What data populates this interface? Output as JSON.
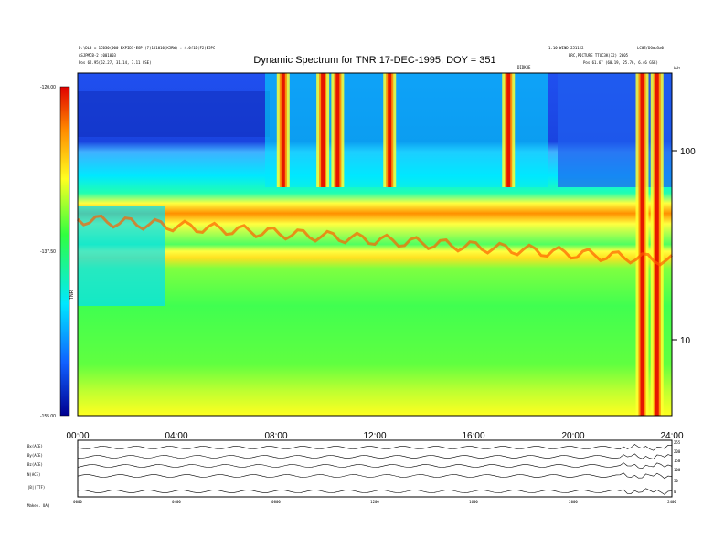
{
  "header": {
    "title": "Dynamic Spectrum for TNR 17-DEC-1995, DOY = 351",
    "left_line1": "D:\\DL3 = 1C030(000 EXPID1-EGP (7)1D1010(K5RW) : 4.0f1D(F2)E5PC",
    "left_line2": "ASJPMCB-2 :001003",
    "left_line3": "Pos  62.95(62.27, 31.14, 7.11 GSE)",
    "right_line1": "1.10 WIND 251122",
    "right_line2": "BRC,PICTURE TTUC3K(32) 2005",
    "right_line3": "Pos  61.67 (60.19, 25.76, 6.46 GSE)",
    "right_corner": "LC0E/DOmo3a0",
    "small_mark": "DIDK3E"
  },
  "colorbar": {
    "tick_labels": [
      "-120.00",
      "-137.50",
      "-155.00"
    ],
    "axis_label": "TNR",
    "colors": [
      "#e00000",
      "#ff8a00",
      "#ffff20",
      "#30ff40",
      "#00e8ff",
      "#1060ff",
      "#000090"
    ]
  },
  "panels": {
    "labels": [
      "Bx(ACE)",
      "By(ACE)",
      "Bz(ACE)",
      "N(ACE)",
      "|B|(TTF)"
    ],
    "footer_label": "Makeo. UAQ",
    "tick_labels_right": [
      "255",
      "200",
      "150",
      "100",
      "50",
      "0"
    ],
    "axis_times": [
      "0000",
      "0400",
      "0800",
      "1200",
      "1600",
      "2000",
      "2400"
    ]
  },
  "chart_data": {
    "type": "heatmap",
    "title": "Dynamic Spectrum for TNR 17-DEC-1995, DOY = 351",
    "x": {
      "label": "",
      "range": [
        "00:00",
        "24:00"
      ],
      "tick_labels": [
        "00:00",
        "04:00",
        "08:00",
        "12:00",
        "16:00",
        "20:00",
        "24:00"
      ]
    },
    "y": {
      "label": "kHz",
      "scale": "log",
      "range": [
        4,
        256
      ],
      "tick_values": [
        10,
        100
      ],
      "tick_labels": [
        "10",
        "100"
      ]
    },
    "color_scale": {
      "label": "TNR",
      "range": [
        -155.0,
        -120.0
      ],
      "tick_labels": [
        "-120.00",
        "-137.50",
        "-155.00"
      ]
    },
    "features": {
      "low_band_top_khz": 90,
      "plasma_line_khz": [
        50,
        28
      ],
      "bursts_hours": [
        8.3,
        9.9,
        10.5,
        12.6,
        17.4,
        22.8,
        23.4
      ]
    }
  }
}
